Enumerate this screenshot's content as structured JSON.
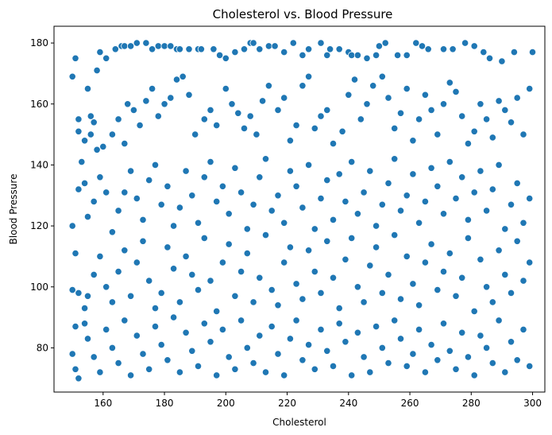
{
  "chart_data": {
    "type": "scatter",
    "title": "Cholesterol vs. Blood Pressure",
    "xlabel": "Cholesterol",
    "ylabel": "Blood Pressure",
    "xlim": [
      144,
      304
    ],
    "ylim": [
      65.5,
      185.5
    ],
    "xticks": [
      160,
      180,
      200,
      220,
      240,
      260,
      280,
      300
    ],
    "yticks": [
      80,
      100,
      120,
      140,
      160,
      180
    ],
    "grid": false,
    "point_color": "#1f77b4",
    "points": [
      [
        150,
        169
      ],
      [
        151,
        175
      ],
      [
        152,
        151
      ],
      [
        152,
        155
      ],
      [
        154,
        148
      ],
      [
        155,
        165
      ],
      [
        156,
        156
      ],
      [
        157,
        154
      ],
      [
        158,
        171
      ],
      [
        159,
        177
      ],
      [
        161,
        175
      ],
      [
        164,
        178
      ],
      [
        166,
        179
      ],
      [
        167,
        179
      ],
      [
        169,
        179
      ],
      [
        171,
        180
      ],
      [
        174,
        180
      ],
      [
        176,
        178
      ],
      [
        178,
        179
      ],
      [
        180,
        179
      ],
      [
        182,
        179
      ],
      [
        184,
        178
      ],
      [
        185,
        178
      ],
      [
        188,
        178
      ],
      [
        191,
        178
      ],
      [
        192,
        178
      ],
      [
        196,
        178
      ],
      [
        198,
        176
      ],
      [
        200,
        175
      ],
      [
        203,
        177
      ],
      [
        206,
        178
      ],
      [
        208,
        180
      ],
      [
        209,
        180
      ],
      [
        211,
        178
      ],
      [
        214,
        179
      ],
      [
        216,
        179
      ],
      [
        219,
        177
      ],
      [
        222,
        180
      ],
      [
        225,
        176
      ],
      [
        227,
        178
      ],
      [
        231,
        180
      ],
      [
        233,
        176
      ],
      [
        234,
        178
      ],
      [
        237,
        178
      ],
      [
        240,
        177
      ],
      [
        241,
        176
      ],
      [
        243,
        176
      ],
      [
        246,
        175
      ],
      [
        249,
        176
      ],
      [
        250,
        179
      ],
      [
        252,
        180
      ],
      [
        256,
        176
      ],
      [
        259,
        176
      ],
      [
        262,
        180
      ],
      [
        264,
        179
      ],
      [
        266,
        178
      ],
      [
        271,
        178
      ],
      [
        274,
        178
      ],
      [
        278,
        180
      ],
      [
        281,
        179
      ],
      [
        284,
        177
      ],
      [
        286,
        175
      ],
      [
        290,
        174
      ],
      [
        294,
        177
      ],
      [
        300,
        177
      ],
      [
        156,
        150
      ],
      [
        158,
        145
      ],
      [
        160,
        146
      ],
      [
        163,
        150
      ],
      [
        165,
        155
      ],
      [
        167,
        147
      ],
      [
        168,
        160
      ],
      [
        170,
        158
      ],
      [
        172,
        153
      ],
      [
        174,
        161
      ],
      [
        176,
        165
      ],
      [
        178,
        156
      ],
      [
        180,
        160
      ],
      [
        182,
        162
      ],
      [
        184,
        168
      ],
      [
        186,
        169
      ],
      [
        188,
        163
      ],
      [
        190,
        150
      ],
      [
        193,
        155
      ],
      [
        195,
        158
      ],
      [
        197,
        153
      ],
      [
        200,
        165
      ],
      [
        202,
        160
      ],
      [
        204,
        157
      ],
      [
        206,
        152
      ],
      [
        208,
        156
      ],
      [
        210,
        150
      ],
      [
        212,
        161
      ],
      [
        214,
        166
      ],
      [
        217,
        158
      ],
      [
        219,
        162
      ],
      [
        221,
        148
      ],
      [
        223,
        153
      ],
      [
        225,
        166
      ],
      [
        227,
        169
      ],
      [
        229,
        152
      ],
      [
        231,
        156
      ],
      [
        233,
        158
      ],
      [
        235,
        147
      ],
      [
        238,
        151
      ],
      [
        240,
        163
      ],
      [
        242,
        168
      ],
      [
        244,
        155
      ],
      [
        246,
        160
      ],
      [
        248,
        166
      ],
      [
        251,
        169
      ],
      [
        253,
        162
      ],
      [
        255,
        152
      ],
      [
        257,
        157
      ],
      [
        259,
        165
      ],
      [
        261,
        148
      ],
      [
        263,
        155
      ],
      [
        265,
        163
      ],
      [
        267,
        158
      ],
      [
        269,
        150
      ],
      [
        271,
        160
      ],
      [
        273,
        167
      ],
      [
        275,
        164
      ],
      [
        277,
        156
      ],
      [
        279,
        147
      ],
      [
        281,
        151
      ],
      [
        283,
        160
      ],
      [
        285,
        155
      ],
      [
        287,
        149
      ],
      [
        289,
        161
      ],
      [
        291,
        158
      ],
      [
        293,
        154
      ],
      [
        295,
        162
      ],
      [
        297,
        150
      ],
      [
        299,
        165
      ],
      [
        150,
        120
      ],
      [
        151,
        111
      ],
      [
        152,
        132
      ],
      [
        153,
        141
      ],
      [
        154,
        134
      ],
      [
        155,
        123
      ],
      [
        157,
        128
      ],
      [
        159,
        136
      ],
      [
        161,
        131
      ],
      [
        163,
        118
      ],
      [
        165,
        125
      ],
      [
        167,
        131
      ],
      [
        169,
        138
      ],
      [
        171,
        129
      ],
      [
        173,
        122
      ],
      [
        175,
        135
      ],
      [
        177,
        140
      ],
      [
        179,
        127
      ],
      [
        181,
        133
      ],
      [
        183,
        120
      ],
      [
        185,
        126
      ],
      [
        187,
        138
      ],
      [
        189,
        130
      ],
      [
        191,
        121
      ],
      [
        193,
        136
      ],
      [
        195,
        141
      ],
      [
        197,
        128
      ],
      [
        199,
        133
      ],
      [
        201,
        124
      ],
      [
        203,
        139
      ],
      [
        205,
        131
      ],
      [
        207,
        119
      ],
      [
        209,
        127
      ],
      [
        211,
        136
      ],
      [
        213,
        142
      ],
      [
        215,
        125
      ],
      [
        217,
        130
      ],
      [
        219,
        121
      ],
      [
        221,
        138
      ],
      [
        223,
        133
      ],
      [
        225,
        126
      ],
      [
        227,
        140
      ],
      [
        229,
        119
      ],
      [
        231,
        129
      ],
      [
        233,
        135
      ],
      [
        235,
        122
      ],
      [
        237,
        137
      ],
      [
        239,
        128
      ],
      [
        241,
        141
      ],
      [
        243,
        124
      ],
      [
        245,
        131
      ],
      [
        247,
        138
      ],
      [
        249,
        120
      ],
      [
        251,
        127
      ],
      [
        253,
        134
      ],
      [
        255,
        142
      ],
      [
        257,
        125
      ],
      [
        259,
        130
      ],
      [
        261,
        137
      ],
      [
        263,
        121
      ],
      [
        265,
        128
      ],
      [
        267,
        139
      ],
      [
        269,
        133
      ],
      [
        271,
        124
      ],
      [
        273,
        141
      ],
      [
        275,
        129
      ],
      [
        277,
        136
      ],
      [
        279,
        122
      ],
      [
        281,
        131
      ],
      [
        283,
        138
      ],
      [
        285,
        125
      ],
      [
        287,
        132
      ],
      [
        289,
        140
      ],
      [
        291,
        119
      ],
      [
        293,
        127
      ],
      [
        295,
        134
      ],
      [
        297,
        121
      ],
      [
        299,
        129
      ],
      [
        150,
        99
      ],
      [
        151,
        87
      ],
      [
        152,
        98
      ],
      [
        154,
        93
      ],
      [
        155,
        97
      ],
      [
        157,
        104
      ],
      [
        159,
        110
      ],
      [
        161,
        100
      ],
      [
        163,
        95
      ],
      [
        165,
        105
      ],
      [
        167,
        112
      ],
      [
        169,
        97
      ],
      [
        171,
        108
      ],
      [
        173,
        115
      ],
      [
        175,
        102
      ],
      [
        177,
        93
      ],
      [
        179,
        98
      ],
      [
        181,
        113
      ],
      [
        183,
        106
      ],
      [
        185,
        95
      ],
      [
        187,
        110
      ],
      [
        189,
        104
      ],
      [
        191,
        99
      ],
      [
        193,
        116
      ],
      [
        195,
        102
      ],
      [
        197,
        92
      ],
      [
        199,
        108
      ],
      [
        201,
        114
      ],
      [
        203,
        97
      ],
      [
        205,
        105
      ],
      [
        207,
        111
      ],
      [
        209,
        95
      ],
      [
        211,
        103
      ],
      [
        213,
        117
      ],
      [
        215,
        99
      ],
      [
        217,
        94
      ],
      [
        219,
        108
      ],
      [
        221,
        113
      ],
      [
        223,
        101
      ],
      [
        225,
        96
      ],
      [
        227,
        112
      ],
      [
        229,
        105
      ],
      [
        231,
        98
      ],
      [
        233,
        115
      ],
      [
        235,
        103
      ],
      [
        237,
        93
      ],
      [
        239,
        109
      ],
      [
        241,
        116
      ],
      [
        243,
        100
      ],
      [
        245,
        95
      ],
      [
        247,
        107
      ],
      [
        249,
        113
      ],
      [
        251,
        98
      ],
      [
        253,
        104
      ],
      [
        255,
        117
      ],
      [
        257,
        96
      ],
      [
        259,
        110
      ],
      [
        261,
        101
      ],
      [
        263,
        94
      ],
      [
        265,
        108
      ],
      [
        267,
        114
      ],
      [
        269,
        99
      ],
      [
        271,
        105
      ],
      [
        273,
        111
      ],
      [
        275,
        97
      ],
      [
        277,
        103
      ],
      [
        279,
        116
      ],
      [
        281,
        92
      ],
      [
        283,
        109
      ],
      [
        285,
        100
      ],
      [
        287,
        95
      ],
      [
        289,
        112
      ],
      [
        291,
        104
      ],
      [
        293,
        98
      ],
      [
        295,
        115
      ],
      [
        297,
        102
      ],
      [
        299,
        108
      ],
      [
        150,
        78
      ],
      [
        151,
        73
      ],
      [
        152,
        70
      ],
      [
        154,
        88
      ],
      [
        155,
        83
      ],
      [
        157,
        77
      ],
      [
        159,
        72
      ],
      [
        161,
        86
      ],
      [
        163,
        80
      ],
      [
        165,
        75
      ],
      [
        167,
        89
      ],
      [
        169,
        71
      ],
      [
        171,
        84
      ],
      [
        173,
        78
      ],
      [
        175,
        73
      ],
      [
        177,
        87
      ],
      [
        179,
        81
      ],
      [
        181,
        76
      ],
      [
        183,
        90
      ],
      [
        185,
        72
      ],
      [
        187,
        85
      ],
      [
        189,
        79
      ],
      [
        191,
        74
      ],
      [
        193,
        88
      ],
      [
        195,
        82
      ],
      [
        197,
        71
      ],
      [
        199,
        86
      ],
      [
        201,
        77
      ],
      [
        203,
        73
      ],
      [
        205,
        89
      ],
      [
        207,
        80
      ],
      [
        209,
        75
      ],
      [
        211,
        84
      ],
      [
        213,
        72
      ],
      [
        215,
        87
      ],
      [
        217,
        78
      ],
      [
        219,
        71
      ],
      [
        221,
        83
      ],
      [
        223,
        89
      ],
      [
        225,
        76
      ],
      [
        227,
        81
      ],
      [
        229,
        73
      ],
      [
        231,
        86
      ],
      [
        233,
        79
      ],
      [
        235,
        74
      ],
      [
        237,
        88
      ],
      [
        239,
        82
      ],
      [
        241,
        71
      ],
      [
        243,
        85
      ],
      [
        245,
        77
      ],
      [
        247,
        72
      ],
      [
        249,
        87
      ],
      [
        251,
        80
      ],
      [
        253,
        75
      ],
      [
        255,
        89
      ],
      [
        257,
        83
      ],
      [
        259,
        74
      ],
      [
        261,
        78
      ],
      [
        263,
        86
      ],
      [
        265,
        72
      ],
      [
        267,
        81
      ],
      [
        269,
        76
      ],
      [
        271,
        88
      ],
      [
        273,
        79
      ],
      [
        275,
        73
      ],
      [
        277,
        85
      ],
      [
        279,
        77
      ],
      [
        281,
        71
      ],
      [
        283,
        84
      ],
      [
        285,
        80
      ],
      [
        287,
        75
      ],
      [
        289,
        89
      ],
      [
        291,
        72
      ],
      [
        293,
        82
      ],
      [
        295,
        76
      ],
      [
        297,
        86
      ],
      [
        299,
        74
      ]
    ]
  }
}
